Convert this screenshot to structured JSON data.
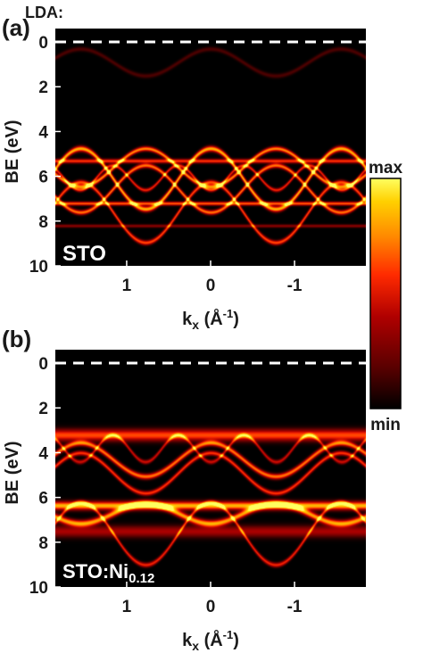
{
  "header": {
    "method_label": "LDA:"
  },
  "chart_data": [
    {
      "panel": "(a)",
      "type": "heatmap",
      "sample_label": "STO",
      "sample_label_sub": "",
      "xlabel": "k",
      "xlabel_sub": "x",
      "xlabel_unit": "(Å",
      "xlabel_unit_sup": "-1",
      "xlabel_unit_close": ")",
      "ylabel": "BE (eV)",
      "x_ticks": [
        {
          "value": 1,
          "label": "1"
        },
        {
          "value": 0,
          "label": "0"
        },
        {
          "value": -1,
          "label": "-1"
        }
      ],
      "y_ticks": [
        0,
        2,
        4,
        6,
        8,
        10
      ],
      "xlim": [
        1.85,
        -1.85
      ],
      "ylim": [
        10,
        -0.6
      ],
      "fermi_level": 0,
      "bands": [
        {
          "center": 6.1,
          "amp": -1.35,
          "period": 1.55,
          "phase": 0,
          "weight": 1.0,
          "width": 0.12
        },
        {
          "center": 5.6,
          "amp": -0.85,
          "period": 1.55,
          "phase": 0.5,
          "weight": 0.9,
          "width": 0.1
        },
        {
          "center": 6.55,
          "amp": 1.05,
          "period": 1.55,
          "phase": 0,
          "weight": 0.85,
          "width": 0.1
        },
        {
          "center": 7.6,
          "amp": 1.35,
          "period": 1.55,
          "phase": 0.5,
          "weight": 0.75,
          "width": 0.1
        },
        {
          "center": 7.2,
          "amp": 0.0,
          "period": 1.55,
          "phase": 0,
          "weight": 0.8,
          "width": 0.08
        },
        {
          "center": 5.3,
          "amp": 0.0,
          "period": 1.55,
          "phase": 0,
          "weight": 0.7,
          "width": 0.09
        },
        {
          "center": 8.2,
          "amp": 0.0,
          "period": 1.55,
          "phase": 0,
          "weight": 0.35,
          "width": 0.07
        },
        {
          "center": 6.05,
          "amp": 0.55,
          "period": 0.78,
          "phase": 0,
          "weight": 0.65,
          "width": 0.08
        },
        {
          "center": 0.9,
          "amp": -0.6,
          "period": 1.55,
          "phase": 0,
          "weight": 0.18,
          "width": 0.1
        }
      ]
    },
    {
      "panel": "(b)",
      "type": "heatmap",
      "sample_label": "STO:Ni",
      "sample_label_sub": "0.12",
      "xlabel": "k",
      "xlabel_sub": "x",
      "xlabel_unit": "(Å",
      "xlabel_unit_sup": "-1",
      "xlabel_unit_close": ")",
      "ylabel": "BE (eV)",
      "x_ticks": [
        {
          "value": 1,
          "label": "1"
        },
        {
          "value": 0,
          "label": "0"
        },
        {
          "value": -1,
          "label": "-1"
        }
      ],
      "y_ticks": [
        0,
        2,
        4,
        6,
        8,
        10
      ],
      "xlim": [
        1.85,
        -1.85
      ],
      "ylim": [
        10,
        -0.6
      ],
      "fermi_level": 0,
      "bands": [
        {
          "center": 6.35,
          "amp": 0.0,
          "period": 1.55,
          "phase": 0,
          "weight": 1.0,
          "width": 0.18
        },
        {
          "center": 6.7,
          "amp": 0.45,
          "period": 1.55,
          "phase": 0,
          "weight": 0.95,
          "width": 0.15
        },
        {
          "center": 4.3,
          "amp": -0.75,
          "period": 1.55,
          "phase": 0,
          "weight": 0.85,
          "width": 0.12
        },
        {
          "center": 3.2,
          "amp": 0.0,
          "period": 1.55,
          "phase": 0,
          "weight": 0.75,
          "width": 0.25
        },
        {
          "center": 4.9,
          "amp": 0.9,
          "period": 1.55,
          "phase": 0.5,
          "weight": 0.7,
          "width": 0.1
        },
        {
          "center": 7.6,
          "amp": 1.4,
          "period": 1.55,
          "phase": 0.5,
          "weight": 0.65,
          "width": 0.1
        },
        {
          "center": 7.5,
          "amp": 0.0,
          "period": 1.55,
          "phase": 0,
          "weight": 0.45,
          "width": 0.25
        },
        {
          "center": 3.8,
          "amp": 0.6,
          "period": 0.78,
          "phase": 0,
          "weight": 0.55,
          "width": 0.09
        }
      ]
    }
  ],
  "colorbar": {
    "max_label": "max",
    "min_label": "min",
    "colors": [
      "#000000",
      "#5a0000",
      "#b00000",
      "#ff2a00",
      "#ff8a00",
      "#ffd000",
      "#ffff60"
    ]
  }
}
